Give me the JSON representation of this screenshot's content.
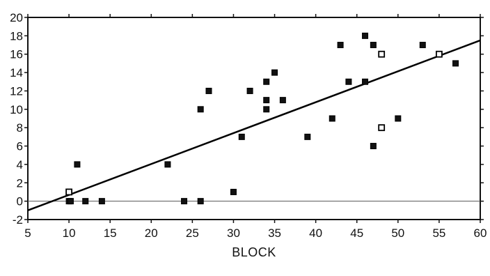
{
  "chart_data": {
    "type": "scatter",
    "title": "",
    "xlabel": "BLOCK",
    "ylabel": "",
    "xlim": [
      5,
      60
    ],
    "ylim": [
      -2,
      20
    ],
    "x_ticks": [
      5,
      10,
      15,
      20,
      25,
      30,
      35,
      40,
      45,
      50,
      55,
      60
    ],
    "y_ticks": [
      -2,
      0,
      2,
      4,
      6,
      8,
      10,
      12,
      14,
      16,
      18,
      20
    ],
    "x_tick_labels": [
      "5",
      "10",
      "15",
      "20",
      "25",
      "30",
      "35",
      "40",
      "45",
      "50",
      "55",
      "60"
    ],
    "y_tick_labels": [
      "-2",
      "0",
      "2",
      "4",
      "6",
      "8",
      "10",
      "12",
      "14",
      "16",
      "18",
      "20"
    ],
    "grid": false,
    "reference_line": {
      "y": 0
    },
    "fit_line": {
      "x": [
        5,
        60
      ],
      "y": [
        -1,
        17.5
      ]
    },
    "series": [
      {
        "points": [
          {
            "x": 10,
            "y": 1,
            "style": "open"
          },
          {
            "x": 10,
            "y": 0,
            "style": "filled"
          },
          {
            "x": 10.2,
            "y": 0,
            "style": "filled"
          },
          {
            "x": 11,
            "y": 4,
            "style": "filled"
          },
          {
            "x": 12,
            "y": 0,
            "style": "filled"
          },
          {
            "x": 14,
            "y": 0,
            "style": "filled"
          },
          {
            "x": 22,
            "y": 4,
            "style": "filled"
          },
          {
            "x": 24,
            "y": 0,
            "style": "filled"
          },
          {
            "x": 26,
            "y": 0,
            "style": "filled"
          },
          {
            "x": 26,
            "y": 10,
            "style": "filled"
          },
          {
            "x": 27,
            "y": 12,
            "style": "filled"
          },
          {
            "x": 30,
            "y": 1,
            "style": "filled"
          },
          {
            "x": 31,
            "y": 7,
            "style": "filled"
          },
          {
            "x": 32,
            "y": 12,
            "style": "filled"
          },
          {
            "x": 34,
            "y": 13,
            "style": "filled"
          },
          {
            "x": 34,
            "y": 11,
            "style": "filled"
          },
          {
            "x": 34,
            "y": 10,
            "style": "filled"
          },
          {
            "x": 35,
            "y": 14,
            "style": "filled"
          },
          {
            "x": 36,
            "y": 11,
            "style": "filled"
          },
          {
            "x": 39,
            "y": 7,
            "style": "filled"
          },
          {
            "x": 42,
            "y": 9,
            "style": "filled"
          },
          {
            "x": 43,
            "y": 17,
            "style": "filled"
          },
          {
            "x": 44,
            "y": 13,
            "style": "filled"
          },
          {
            "x": 46,
            "y": 18,
            "style": "filled"
          },
          {
            "x": 46,
            "y": 13,
            "style": "filled"
          },
          {
            "x": 47,
            "y": 17,
            "style": "filled"
          },
          {
            "x": 47,
            "y": 6,
            "style": "filled"
          },
          {
            "x": 48,
            "y": 16,
            "style": "open"
          },
          {
            "x": 48,
            "y": 8,
            "style": "open"
          },
          {
            "x": 50,
            "y": 9,
            "style": "filled"
          },
          {
            "x": 53,
            "y": 17,
            "style": "filled"
          },
          {
            "x": 55,
            "y": 16,
            "style": "open"
          },
          {
            "x": 57,
            "y": 15,
            "style": "filled"
          }
        ]
      }
    ]
  }
}
